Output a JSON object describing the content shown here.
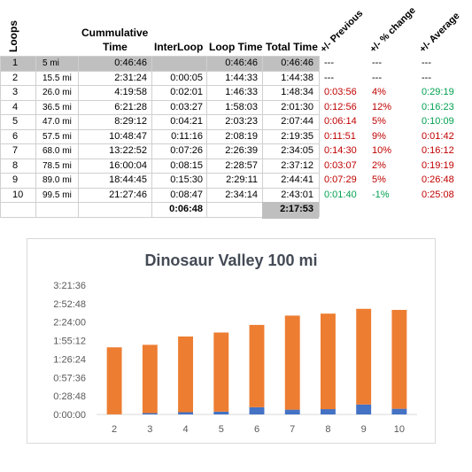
{
  "table": {
    "headers": {
      "loops": "Loops",
      "cumulative_time": [
        "Cummulative",
        "Time"
      ],
      "interloop": "InterLoop",
      "loop_time": "Loop Time",
      "total_time": "Total Time",
      "previous": "+/- Previous",
      "pct_change": "+/- % change",
      "average": "+/- Average"
    },
    "rows": [
      {
        "loop": "1",
        "dist": "5 mi",
        "cum": "0:46:46",
        "inter": "",
        "loop_time": "0:46:46",
        "total": "0:46:46",
        "prev": "---",
        "pct": "---",
        "avg": "---"
      },
      {
        "loop": "2",
        "dist": "15.5 mi",
        "cum": "2:31:24",
        "inter": "0:00:05",
        "loop_time": "1:44:33",
        "total": "1:44:38",
        "prev": "---",
        "pct": "---",
        "avg": "---"
      },
      {
        "loop": "3",
        "dist": "26.0 mi",
        "cum": "4:19:58",
        "inter": "0:02:01",
        "loop_time": "1:46:33",
        "total": "1:48:34",
        "prev": "0:03:56",
        "pct": "4%",
        "avg": "0:29:19"
      },
      {
        "loop": "4",
        "dist": "36.5 mi",
        "cum": "6:21:28",
        "inter": "0:03:27",
        "loop_time": "1:58:03",
        "total": "2:01:30",
        "prev": "0:12:56",
        "pct": "12%",
        "avg": "0:16:23"
      },
      {
        "loop": "5",
        "dist": "47.0 mi",
        "cum": "8:29:12",
        "inter": "0:04:21",
        "loop_time": "2:03:23",
        "total": "2:07:44",
        "prev": "0:06:14",
        "pct": "5%",
        "avg": "0:10:09"
      },
      {
        "loop": "6",
        "dist": "57.5 mi",
        "cum": "10:48:47",
        "inter": "0:11:16",
        "loop_time": "2:08:19",
        "total": "2:19:35",
        "prev": "0:11:51",
        "pct": "9%",
        "avg": "0:01:42"
      },
      {
        "loop": "7",
        "dist": "68.0 mi",
        "cum": "13:22:52",
        "inter": "0:07:26",
        "loop_time": "2:26:39",
        "total": "2:34:05",
        "prev": "0:14:30",
        "pct": "10%",
        "avg": "0:16:12"
      },
      {
        "loop": "8",
        "dist": "78.5 mi",
        "cum": "16:00:04",
        "inter": "0:08:15",
        "loop_time": "2:28:57",
        "total": "2:37:12",
        "prev": "0:03:07",
        "pct": "2%",
        "avg": "0:19:19"
      },
      {
        "loop": "9",
        "dist": "89.0 mi",
        "cum": "18:44:45",
        "inter": "0:15:30",
        "loop_time": "2:29:11",
        "total": "2:44:41",
        "prev": "0:07:29",
        "pct": "5%",
        "avg": "0:26:48"
      },
      {
        "loop": "10",
        "dist": "99.5 mi",
        "cum": "21:27:46",
        "inter": "0:08:47",
        "loop_time": "2:34:14",
        "total": "2:43:01",
        "prev": "0:01:40",
        "pct": "-1%",
        "avg": "0:25:08"
      }
    ],
    "totals": {
      "inter": "0:06:48",
      "total": "2:17:53"
    },
    "colors": {
      "negative": "#c00000",
      "positive": "#00a050",
      "shade": "#bfbfbf"
    }
  },
  "chart_data": {
    "type": "bar",
    "stacked": true,
    "title": "Dinosaur Valley 100 mi",
    "categories": [
      "2",
      "3",
      "4",
      "5",
      "6",
      "7",
      "8",
      "9",
      "10"
    ],
    "series": [
      {
        "values_seconds": [
          5,
          121,
          207,
          261,
          676,
          446,
          495,
          930,
          527
        ],
        "color": "#4472c4"
      },
      {
        "values_seconds": [
          6273,
          6393,
          7083,
          7403,
          7699,
          8799,
          8937,
          8951,
          9254
        ],
        "color": "#ed7d31"
      }
    ],
    "ytick_labels": [
      "0:00:00",
      "0:28:48",
      "0:57:36",
      "1:26:24",
      "1:55:12",
      "2:24:00",
      "2:52:48",
      "3:21:36"
    ],
    "ylim_seconds": [
      0,
      12096
    ],
    "grid": false,
    "legend": "none"
  }
}
